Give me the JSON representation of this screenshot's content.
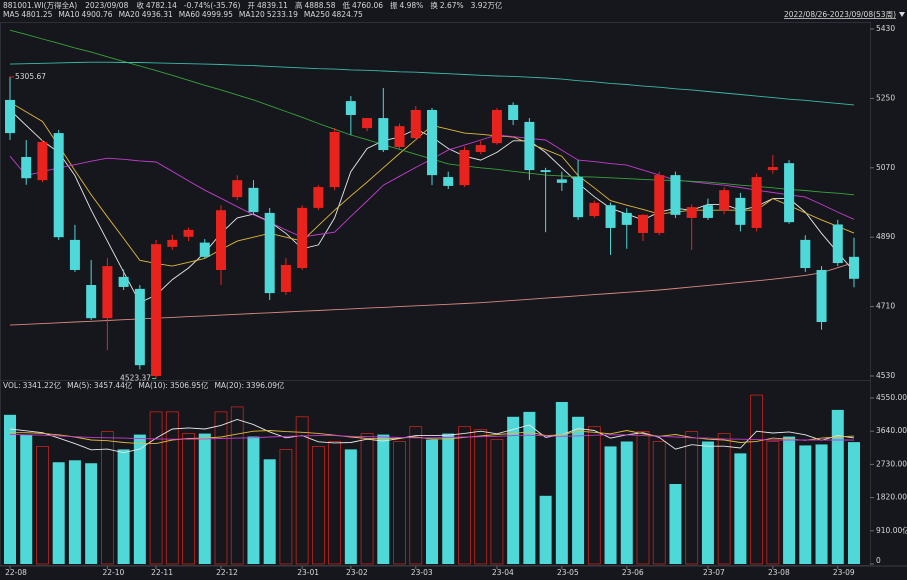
{
  "header": {
    "code": "881001.WI(万得全A)",
    "date": "2023/09/08",
    "fields": [
      {
        "label": "收",
        "value": "4782.14",
        "color": "#3fd27a"
      },
      {
        "value": "-0.74%(-35.76)",
        "color": "#3fd27a"
      },
      {
        "label": "开",
        "value": "4839.11",
        "color": "#ff4a4a"
      },
      {
        "label": "高",
        "value": "4888.58",
        "color": "#ff4a4a"
      },
      {
        "label": "低",
        "value": "4760.06",
        "color": "#3fd27a"
      },
      {
        "label": "振",
        "value": "4.98%",
        "color": "#e0e0e0"
      },
      {
        "label": "换",
        "value": "2.67%",
        "color": "#e0e0e0"
      },
      {
        "value": "3.92万亿",
        "color": "#e0e0e0"
      }
    ],
    "range": "2022/08/26-2023/09/08(53周)"
  },
  "chart_data": [
    {
      "type": "candlestick",
      "open": [
        5246,
        5098,
        5038,
        5160,
        4883,
        4766,
        4680,
        4787,
        4756,
        4530,
        4865,
        4891,
        4876,
        4805,
        4994,
        5018,
        4953,
        4748,
        4810,
        4966,
        5020,
        5243,
        5173,
        5199,
        5124,
        5147,
        5220,
        5046,
        5025,
        5111,
        5134,
        5233,
        5189,
        5064,
        5040,
        5046,
        4945,
        4973,
        4953,
        4901,
        4901,
        5051,
        4940,
        4973,
        4960,
        4992,
        4914,
        5064,
        5082,
        4883,
        4805,
        4923,
        4839.11
      ],
      "high": [
        5305.67,
        5142,
        5142,
        5168,
        4922,
        4831,
        4836,
        4806,
        4766,
        4883,
        4896,
        4915,
        4885,
        4973,
        5051,
        5038,
        4966,
        4836,
        4973,
        5025,
        5173,
        5256,
        5199,
        5277,
        5185,
        5230,
        5225,
        5060,
        5125,
        5140,
        5225,
        5240,
        5199,
        5070,
        5060,
        5090,
        4985,
        4980,
        4965,
        4950,
        5060,
        5060,
        4975,
        4990,
        5020,
        5005,
        5055,
        5103,
        5090,
        4895,
        4815,
        4935,
        4888.58
      ],
      "low": [
        5142,
        5026,
        5033,
        4883,
        4800,
        4675,
        4597,
        4753,
        4547,
        4523.37,
        4857,
        4880,
        4835,
        4766,
        4986,
        4948,
        4727,
        4740,
        4805,
        4960,
        5012,
        5155,
        5165,
        5111,
        5118,
        5140,
        5025,
        5015,
        5020,
        5105,
        5130,
        5181,
        5038,
        4903,
        5010,
        4935,
        4940,
        4844,
        4860,
        4880,
        4895,
        4940,
        4857,
        4935,
        4950,
        4905,
        4905,
        5055,
        4925,
        4800,
        4650,
        4815,
        4760.06
      ],
      "close": [
        5160,
        5043,
        5137,
        4890,
        4805,
        4680,
        4815,
        4761,
        4558,
        4872,
        4883,
        4909,
        4839,
        4960,
        5038,
        4955,
        4745,
        4818,
        4966,
        5020,
        5163,
        5207,
        5199,
        5116,
        5178,
        5220,
        5051,
        5023,
        5116,
        5129,
        5220,
        5194,
        5064,
        5059,
        5031,
        4942,
        4979,
        4914,
        4922,
        4948,
        5051,
        4948,
        4968,
        4940,
        5012,
        4922,
        5046,
        5072,
        4929,
        4810,
        4670,
        4823,
        4782.14
      ],
      "up_color": "#e8231d",
      "down_color": "#4fd8d8",
      "ylim": [
        4530,
        5430
      ],
      "yticks": [
        5430,
        5250,
        5070,
        4890,
        4710,
        4530
      ],
      "series": [
        {
          "name": "MA5",
          "color": "#e8e8e8",
          "values": [
            5220,
            5180,
            5140,
            5110,
            5050,
            4960,
            4880,
            4800,
            4720,
            4740,
            4780,
            4810,
            4850,
            4900,
            4940,
            4950,
            4930,
            4900,
            4860,
            4870,
            4940,
            5060,
            5120,
            5140,
            5150,
            5170,
            5150,
            5120,
            5100,
            5090,
            5110,
            5140,
            5140,
            5110,
            5070,
            5030,
            4995,
            4965,
            4950,
            4935,
            4955,
            4965,
            4960,
            4975,
            4975,
            4960,
            4970,
            4990,
            4990,
            4955,
            4900,
            4850,
            4801.25
          ]
        },
        {
          "name": "MA10",
          "color": "#e2b93b",
          "values": [
            5240,
            5215,
            5190,
            5127,
            5063,
            5000,
            4943,
            4887,
            4830,
            4822,
            4815,
            4825,
            4835,
            4858,
            4880,
            4890,
            4900,
            4890,
            4880,
            4920,
            4960,
            4997,
            5033,
            5070,
            5107,
            5143,
            5180,
            5170,
            5160,
            5157,
            5153,
            5150,
            5133,
            5117,
            5100,
            5050,
            5018,
            4985,
            4973,
            4962,
            4950,
            4955,
            4960,
            4960,
            4960,
            4960,
            4960,
            4990,
            4972,
            4953,
            4935,
            4918,
            4900.76
          ]
        },
        {
          "name": "MA20",
          "color": "#c43ccf",
          "values": [
            5100,
            5050,
            5060,
            5070,
            5078,
            5087,
            5095,
            5092,
            5088,
            5085,
            5061,
            5036,
            5012,
            4991,
            4969,
            4948,
            4929,
            4909,
            4890,
            4897,
            4903,
            4944,
            4984,
            5025,
            5048,
            5071,
            5093,
            5116,
            5129,
            5142,
            5155,
            5151,
            5146,
            5142,
            5116,
            5090,
            5086,
            5081,
            5077,
            5064,
            5051,
            5038,
            5034,
            5029,
            5025,
            5019,
            5012,
            5006,
            5000,
            4994,
            4975,
            4955,
            4936.31
          ]
        },
        {
          "name": "MA60",
          "color": "#3aa23c",
          "values": [
            5427,
            5416,
            5404,
            5393,
            5381,
            5370,
            5358,
            5346,
            5334,
            5322,
            5310,
            5297,
            5284,
            5272,
            5259,
            5246,
            5231,
            5216,
            5201,
            5185,
            5170,
            5155,
            5143,
            5130,
            5118,
            5105,
            5093,
            5080,
            5075,
            5070,
            5066,
            5061,
            5056,
            5051,
            5049,
            5047,
            5046,
            5044,
            5042,
            5040,
            5038,
            5037,
            5035,
            5033,
            5029,
            5025,
            5022,
            5018,
            5014,
            5011,
            5007,
            5004,
            4999.95
          ]
        },
        {
          "name": "MA120",
          "color": "#3db8a8",
          "values": [
            5339,
            5340,
            5341,
            5342,
            5343,
            5344,
            5344,
            5343,
            5343,
            5342,
            5341,
            5340,
            5339,
            5338,
            5336,
            5335,
            5333,
            5331,
            5329,
            5327,
            5326,
            5324,
            5323,
            5321,
            5319,
            5318,
            5316,
            5314,
            5312,
            5310,
            5308,
            5307,
            5305,
            5303,
            5300,
            5296,
            5293,
            5289,
            5286,
            5282,
            5279,
            5275,
            5272,
            5268,
            5264,
            5260,
            5256,
            5252,
            5248,
            5245,
            5241,
            5237,
            5233.19
          ]
        },
        {
          "name": "MA250",
          "color": "#d98a80",
          "values": [
            4662,
            4664,
            4666,
            4668,
            4670,
            4672,
            4674,
            4676,
            4678,
            4680,
            4682,
            4684,
            4686,
            4688,
            4690,
            4692,
            4694,
            4696,
            4698,
            4700,
            4702,
            4704,
            4706,
            4708,
            4710,
            4712,
            4714,
            4716,
            4718,
            4720,
            4723,
            4726,
            4729,
            4732,
            4735,
            4738,
            4741,
            4744,
            4747,
            4750,
            4753,
            4757,
            4761,
            4765,
            4769,
            4773,
            4777,
            4781,
            4786,
            4791,
            4798,
            4811,
            4824.75
          ]
        }
      ]
    },
    {
      "type": "bar",
      "name": "VOL:",
      "last_label": "3341.22亿",
      "categories": [
        "22-08",
        null,
        null,
        null,
        null,
        null,
        "22-10",
        null,
        null,
        "22-11",
        null,
        null,
        null,
        "22-12",
        null,
        null,
        null,
        null,
        "23-01",
        null,
        null,
        "23-02",
        null,
        null,
        null,
        "23-03",
        null,
        null,
        null,
        null,
        "23-04",
        null,
        null,
        null,
        "23-05",
        null,
        null,
        null,
        "23-06",
        null,
        null,
        null,
        null,
        "23-07",
        null,
        null,
        null,
        "23-08",
        null,
        null,
        null,
        "23-09",
        null
      ],
      "values": [
        4089,
        3547,
        3223,
        2789,
        2843,
        2762,
        3629,
        3141,
        3547,
        4170,
        4170,
        3575,
        3575,
        4170,
        4306,
        3493,
        2870,
        3141,
        4035,
        3223,
        3358,
        3141,
        3575,
        3547,
        3358,
        3764,
        3412,
        3575,
        3764,
        3683,
        3412,
        4035,
        4170,
        1869,
        4441,
        4035,
        3764,
        3223,
        3358,
        3629,
        3358,
        2193,
        3629,
        3358,
        3575,
        3033,
        4631,
        3358,
        3493,
        3250,
        3277,
        4224,
        3341.22
      ],
      "ylim": [
        0,
        4550
      ],
      "yticks": [
        {
          "value": 4550,
          "label": "4550.00亿"
        },
        {
          "value": 3640,
          "label": "3640.00亿"
        },
        {
          "value": 2730,
          "label": "2730.00亿"
        },
        {
          "value": 1820,
          "label": "1820.00亿"
        },
        {
          "value": 910,
          "label": "910.00亿"
        },
        0
      ],
      "series": [
        {
          "name": "MA(5):",
          "last_label": "3457.44亿",
          "color": "#e8e8e8",
          "values": [
            3700,
            3650,
            3600,
            3450,
            3300,
            3130,
            3150,
            3050,
            3150,
            3450,
            3700,
            3730,
            3700,
            3800,
            3960,
            3820,
            3620,
            3460,
            3520,
            3350,
            3320,
            3330,
            3420,
            3370,
            3440,
            3520,
            3520,
            3530,
            3580,
            3640,
            3570,
            3690,
            3810,
            3470,
            3540,
            3710,
            3660,
            3450,
            3540,
            3600,
            3470,
            3150,
            3270,
            3230,
            3230,
            3180,
            3640,
            3590,
            3620,
            3540,
            3390,
            3520,
            3457.44
          ]
        },
        {
          "name": "MA(10):",
          "last_label": "3506.95亿",
          "color": "#e2b93b",
          "values": [
            3600,
            3600,
            3580,
            3540,
            3480,
            3400,
            3380,
            3330,
            3300,
            3300,
            3400,
            3440,
            3450,
            3480,
            3560,
            3640,
            3660,
            3630,
            3610,
            3580,
            3530,
            3480,
            3440,
            3430,
            3450,
            3480,
            3430,
            3430,
            3470,
            3510,
            3550,
            3580,
            3620,
            3520,
            3540,
            3640,
            3610,
            3570,
            3660,
            3570,
            3500,
            3550,
            3470,
            3420,
            3400,
            3330,
            3360,
            3450,
            3420,
            3390,
            3450,
            3480,
            3506.95
          ]
        },
        {
          "name": "MA(20):",
          "last_label": "3396.09亿",
          "color": "#c43ccf",
          "values": [
            3550,
            3540,
            3530,
            3510,
            3490,
            3470,
            3460,
            3450,
            3440,
            3430,
            3420,
            3420,
            3430,
            3440,
            3450,
            3460,
            3480,
            3500,
            3510,
            3520,
            3520,
            3500,
            3490,
            3480,
            3470,
            3460,
            3460,
            3470,
            3480,
            3490,
            3500,
            3520,
            3530,
            3510,
            3500,
            3510,
            3530,
            3540,
            3540,
            3520,
            3500,
            3480,
            3460,
            3450,
            3430,
            3420,
            3410,
            3400,
            3400,
            3400,
            3395,
            3400,
            3396.09
          ]
        }
      ]
    }
  ]
}
